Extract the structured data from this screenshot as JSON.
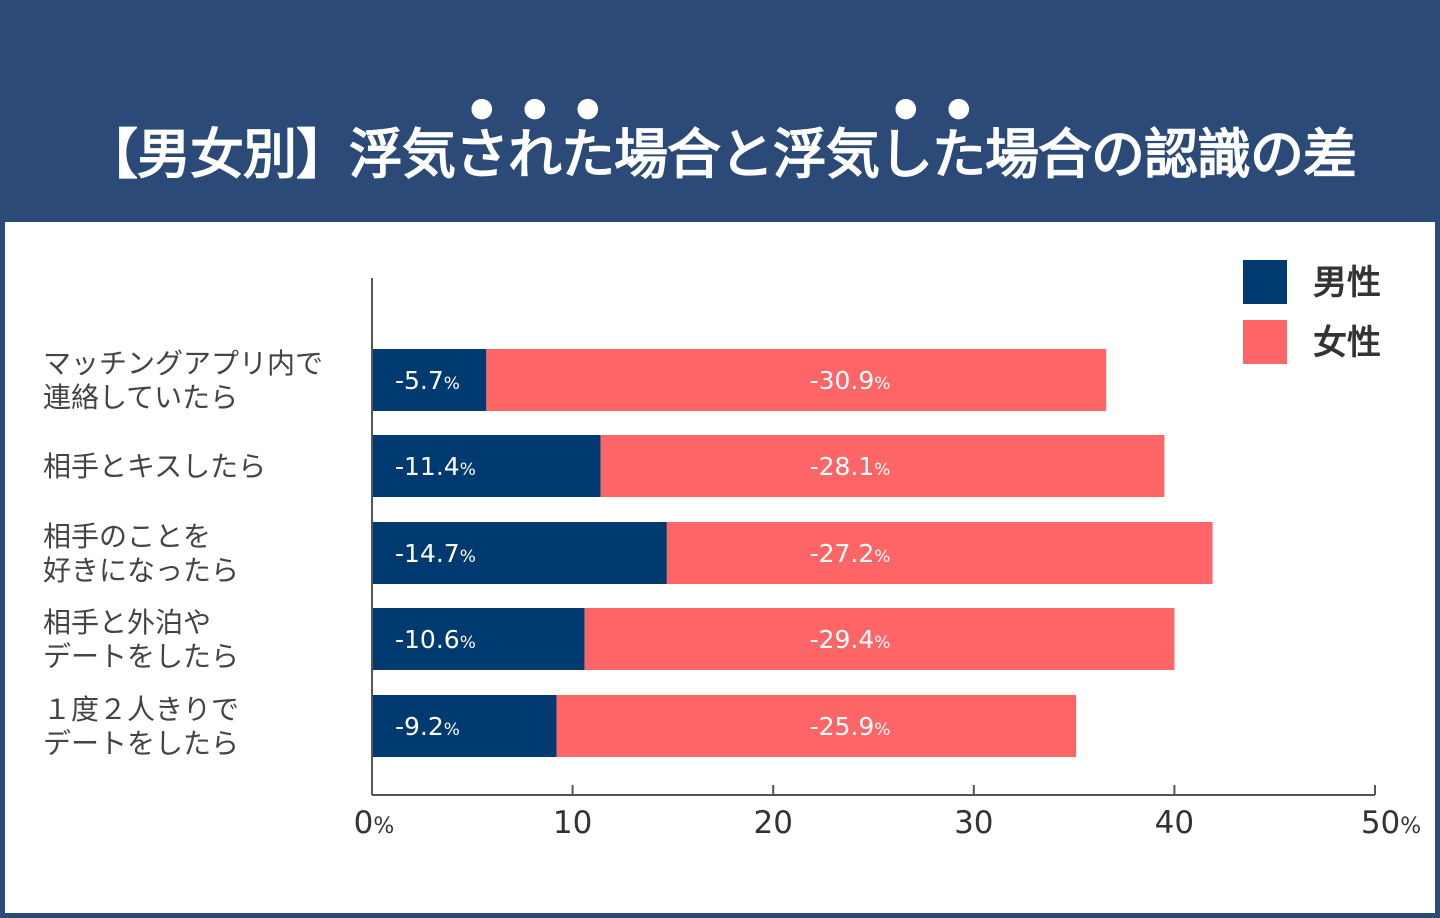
{
  "title_segments": [
    {
      "text": "【男女別】浮気",
      "emphasis": false
    },
    {
      "text": "された",
      "emphasis": true
    },
    {
      "text": "場合と浮気",
      "emphasis": false
    },
    {
      "text": "した",
      "emphasis": true
    },
    {
      "text": "場合の認識の差",
      "emphasis": false
    }
  ],
  "colors": {
    "header": "#2b4a78",
    "male": "#003a70",
    "female": "#fe6566",
    "text": "#444444"
  },
  "chart_data": {
    "type": "bar",
    "orientation": "horizontal",
    "stacked": true,
    "title": "【男女別】浮気された場合と浮気した場合の認識の差",
    "categories": [
      [
        "マッチングアプリ内で",
        "連絡していたら"
      ],
      [
        "相手とキスしたら"
      ],
      [
        "相手のことを",
        "好きになったら"
      ],
      [
        "相手と外泊や",
        "デートをしたら"
      ],
      [
        "１度２人きりで",
        "デートをしたら"
      ]
    ],
    "series": [
      {
        "name": "男性",
        "values": [
          5.7,
          11.4,
          14.7,
          10.6,
          9.2
        ],
        "labels": [
          "-5.7",
          "-11.4",
          "-14.7",
          "-10.6",
          "-9.2"
        ]
      },
      {
        "name": "女性",
        "values": [
          30.9,
          28.1,
          27.2,
          29.4,
          25.9
        ],
        "labels": [
          "-30.9",
          "-28.1",
          "-27.2",
          "-29.4",
          "-25.9"
        ]
      }
    ],
    "label_unit": "%",
    "xlim": [
      0,
      50
    ],
    "xticks": [
      "0",
      "10",
      "20",
      "30",
      "40",
      "50"
    ],
    "xtick_unit": "%",
    "legend_position": "top-right",
    "grid": false
  }
}
